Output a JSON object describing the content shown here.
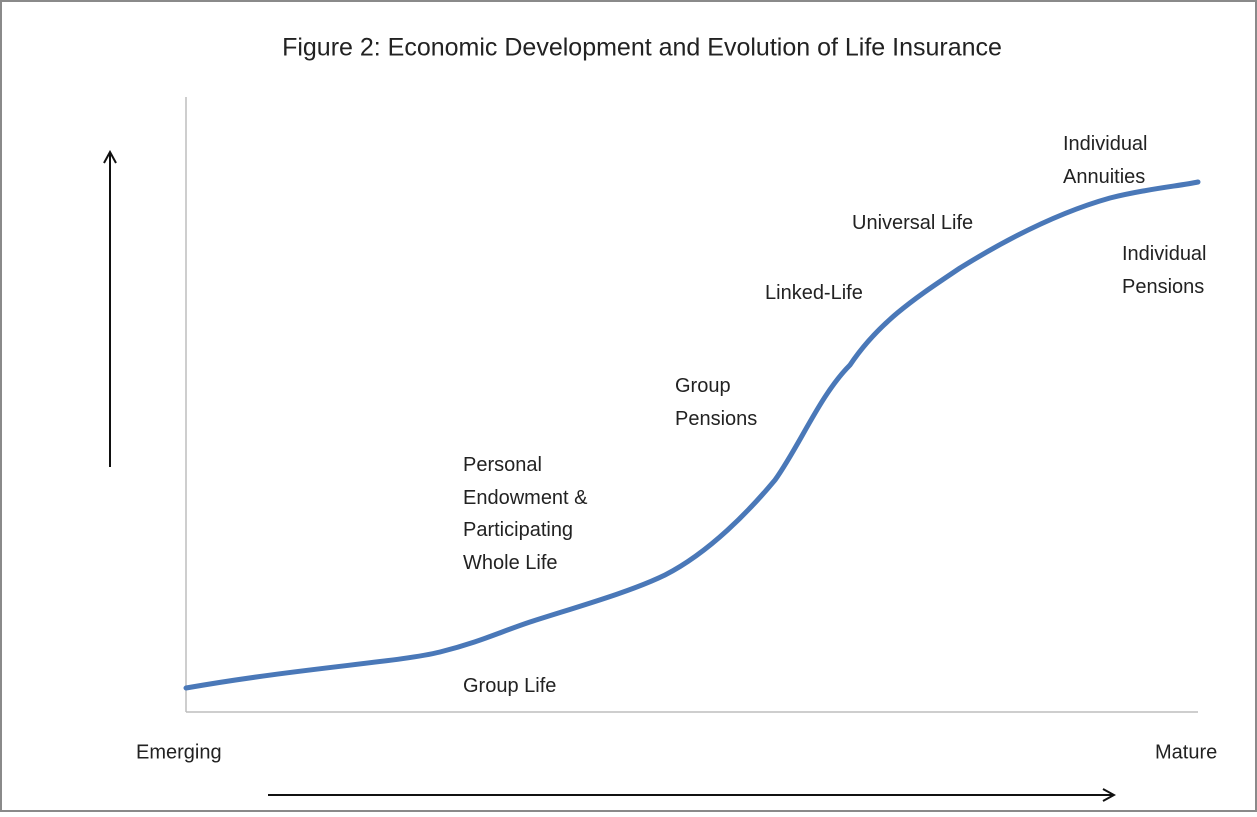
{
  "title": "Figure 2: Economic Development and Evolution of Life Insurance",
  "labels": [
    [
      "Individual",
      "Annuities"
    ],
    [
      "Universal Life"
    ],
    [
      "Individual",
      "Pensions"
    ],
    [
      "Linked-Life"
    ],
    [
      "Group",
      "Pensions"
    ],
    [
      "Personal",
      "Endowment &",
      "Participating",
      "Whole Life"
    ],
    [
      "Group Life"
    ]
  ],
  "x_axis": {
    "start": "Emerging",
    "end": "Mature"
  }
}
